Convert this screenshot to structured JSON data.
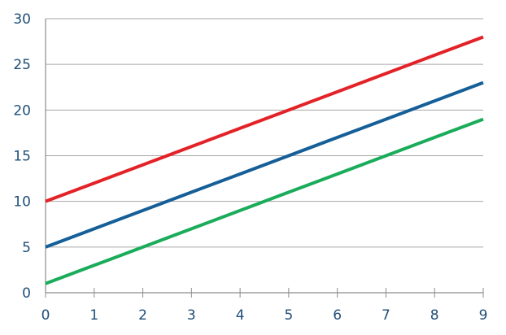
{
  "chart_data": {
    "type": "line",
    "title": "",
    "xlabel": "",
    "ylabel": "",
    "x": [
      0,
      1,
      2,
      3,
      4,
      5,
      6,
      7,
      8,
      9
    ],
    "xlim": [
      0,
      9
    ],
    "ylim": [
      0,
      30
    ],
    "x_ticks": [
      "0",
      "1",
      "2",
      "3",
      "4",
      "5",
      "6",
      "7",
      "8",
      "9"
    ],
    "y_ticks": [
      "0",
      "5",
      "10",
      "15",
      "20",
      "25",
      "30"
    ],
    "y_tick_values": [
      0,
      5,
      10,
      15,
      20,
      25,
      30
    ],
    "grid": "horizontal",
    "legend": "none",
    "series": [
      {
        "color": "#e32227",
        "values": [
          10,
          12,
          14,
          16,
          18,
          20,
          22,
          24,
          26,
          28
        ]
      },
      {
        "color": "#155f99",
        "values": [
          5,
          7,
          9,
          11,
          13,
          15,
          17,
          19,
          21,
          23
        ]
      },
      {
        "color": "#1aac5a",
        "values": [
          1,
          3,
          5,
          7,
          9,
          11,
          13,
          15,
          17,
          19
        ]
      }
    ]
  }
}
